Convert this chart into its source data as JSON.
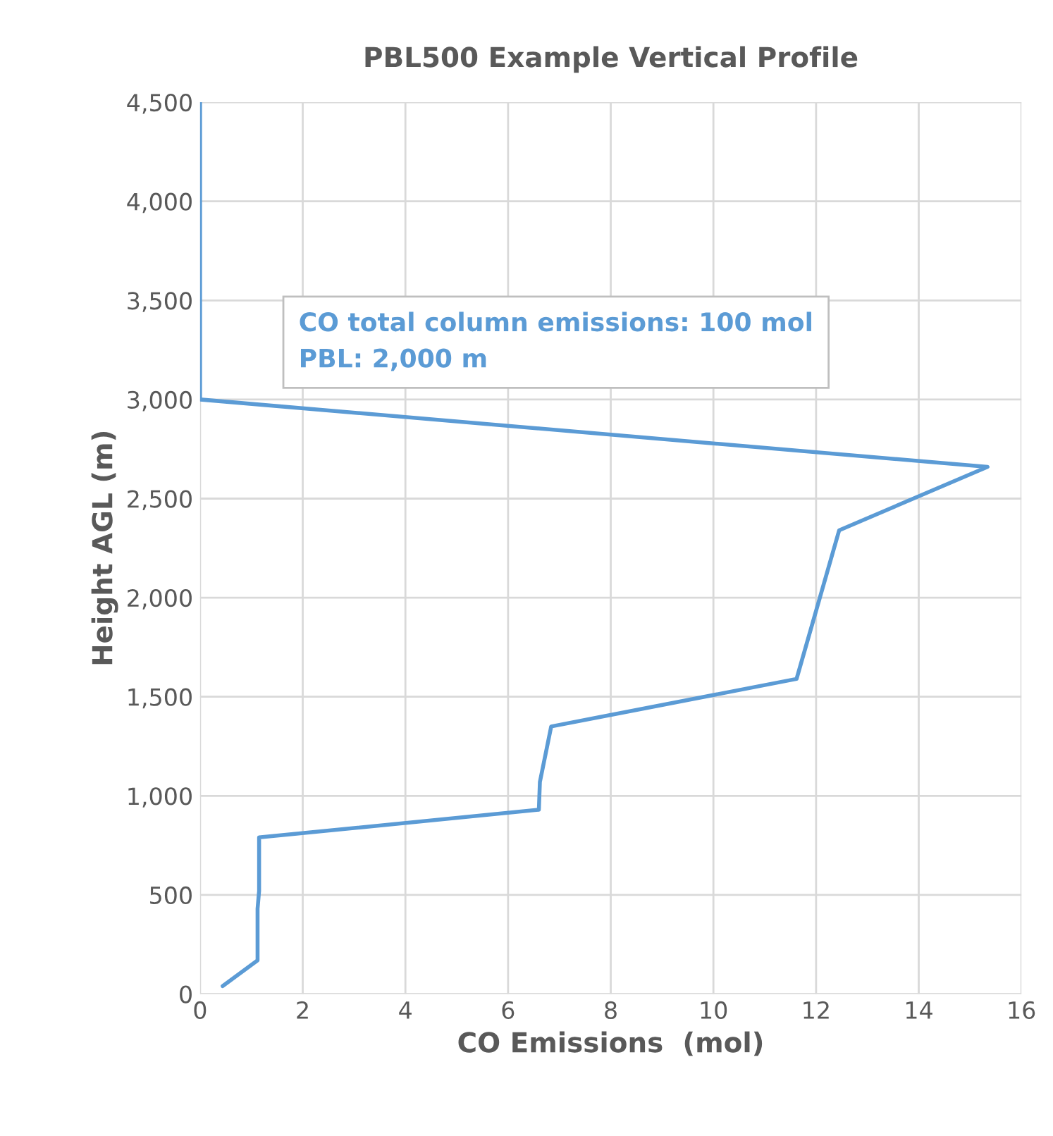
{
  "chart_data": {
    "type": "line",
    "title": "PBL500 Example Vertical Profile",
    "xlabel": "CO Emissions  (mol)",
    "ylabel": "Height AGL (m)",
    "x": [
      0.44,
      1.12,
      1.12,
      1.15,
      1.15,
      6.6,
      6.62,
      6.84,
      11.62,
      12.45,
      15.34,
      0,
      0
    ],
    "series": [
      {
        "color": "#5b9bd5",
        "values": [
          40,
          170,
          430,
          520,
          790,
          930,
          1070,
          1350,
          1590,
          2340,
          2660,
          3000,
          4500
        ]
      }
    ],
    "xlim": [
      0,
      16
    ],
    "xticks": [
      0,
      2,
      4,
      6,
      8,
      10,
      12,
      14,
      16
    ],
    "ylim": [
      0,
      4500
    ],
    "yticks": [
      {
        "value": 0,
        "label": "0"
      },
      {
        "value": 500,
        "label": "500"
      },
      {
        "value": 1000,
        "label": "1,000"
      },
      {
        "value": 1500,
        "label": "1,500"
      },
      {
        "value": 2000,
        "label": "2,000"
      },
      {
        "value": 2500,
        "label": "2,500"
      },
      {
        "value": 3000,
        "label": "3,000"
      },
      {
        "value": 3500,
        "label": "3,500"
      },
      {
        "value": 4000,
        "label": "4,000"
      },
      {
        "value": 4500,
        "label": "4,500"
      }
    ],
    "grid": true,
    "legend": false,
    "annotations": [
      "CO total column emissions: 100 mol\nPBL: 2,000 m"
    ]
  }
}
